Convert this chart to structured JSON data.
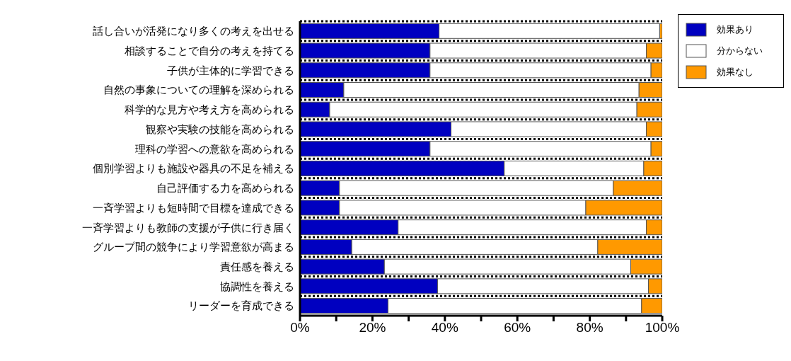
{
  "chart_data": {
    "type": "bar",
    "orientation": "horizontal",
    "stacked": true,
    "categories": [
      "話し合いが活発になり多くの考えを出せる",
      "相談することで自分の考えを持てる",
      "子供が主体的に学習できる",
      "自然の事象についての理解を深められる",
      "科学的な見方や考え方を高められる",
      "観察や実験の技能を高められる",
      "理科の学習への意欲を高められる",
      "個別学習よりも施設や器具の不足を補える",
      "自己評価する力を高められる",
      "一斉学習よりも短時間で目標を達成できる",
      "一斉学習よりも教師の支援が子供に行き届く",
      "グループ間の競争により学習意欲が高まる",
      "責任感を養える",
      "協調性を養える",
      "リーダーを育成できる"
    ],
    "series": [
      {
        "name": "効果あり",
        "color": "#0000c0",
        "values": [
          38.4,
          35.9,
          35.9,
          12.1,
          8.2,
          41.7,
          35.9,
          56.4,
          10.9,
          10.9,
          27.1,
          14.3,
          23.3,
          38.0,
          24.3
        ]
      },
      {
        "name": "分からない",
        "color": "#ffffff",
        "values": [
          60.9,
          59.7,
          61.0,
          81.5,
          84.8,
          53.9,
          61.0,
          38.5,
          75.6,
          68.0,
          68.5,
          67.9,
          68.0,
          58.2,
          70.0
        ]
      },
      {
        "name": "効果なし",
        "color": "#ff9900",
        "values": [
          0.7,
          4.4,
          3.1,
          6.4,
          7.0,
          4.4,
          3.1,
          5.1,
          13.5,
          21.1,
          4.4,
          17.8,
          8.7,
          3.8,
          5.7
        ]
      }
    ],
    "xlim": [
      0,
      100
    ],
    "xticks": [
      {
        "value": 0,
        "label": "0%"
      },
      {
        "value": 10,
        "label": null
      },
      {
        "value": 20,
        "label": "20%"
      },
      {
        "value": 30,
        "label": null
      },
      {
        "value": 40,
        "label": "40%"
      },
      {
        "value": 50,
        "label": null
      },
      {
        "value": 60,
        "label": "60%"
      },
      {
        "value": 70,
        "label": null
      },
      {
        "value": 80,
        "label": "80%"
      },
      {
        "value": 90,
        "label": null
      },
      {
        "value": 100,
        "label": "100%"
      }
    ],
    "grid": "y",
    "legend": "top right"
  }
}
